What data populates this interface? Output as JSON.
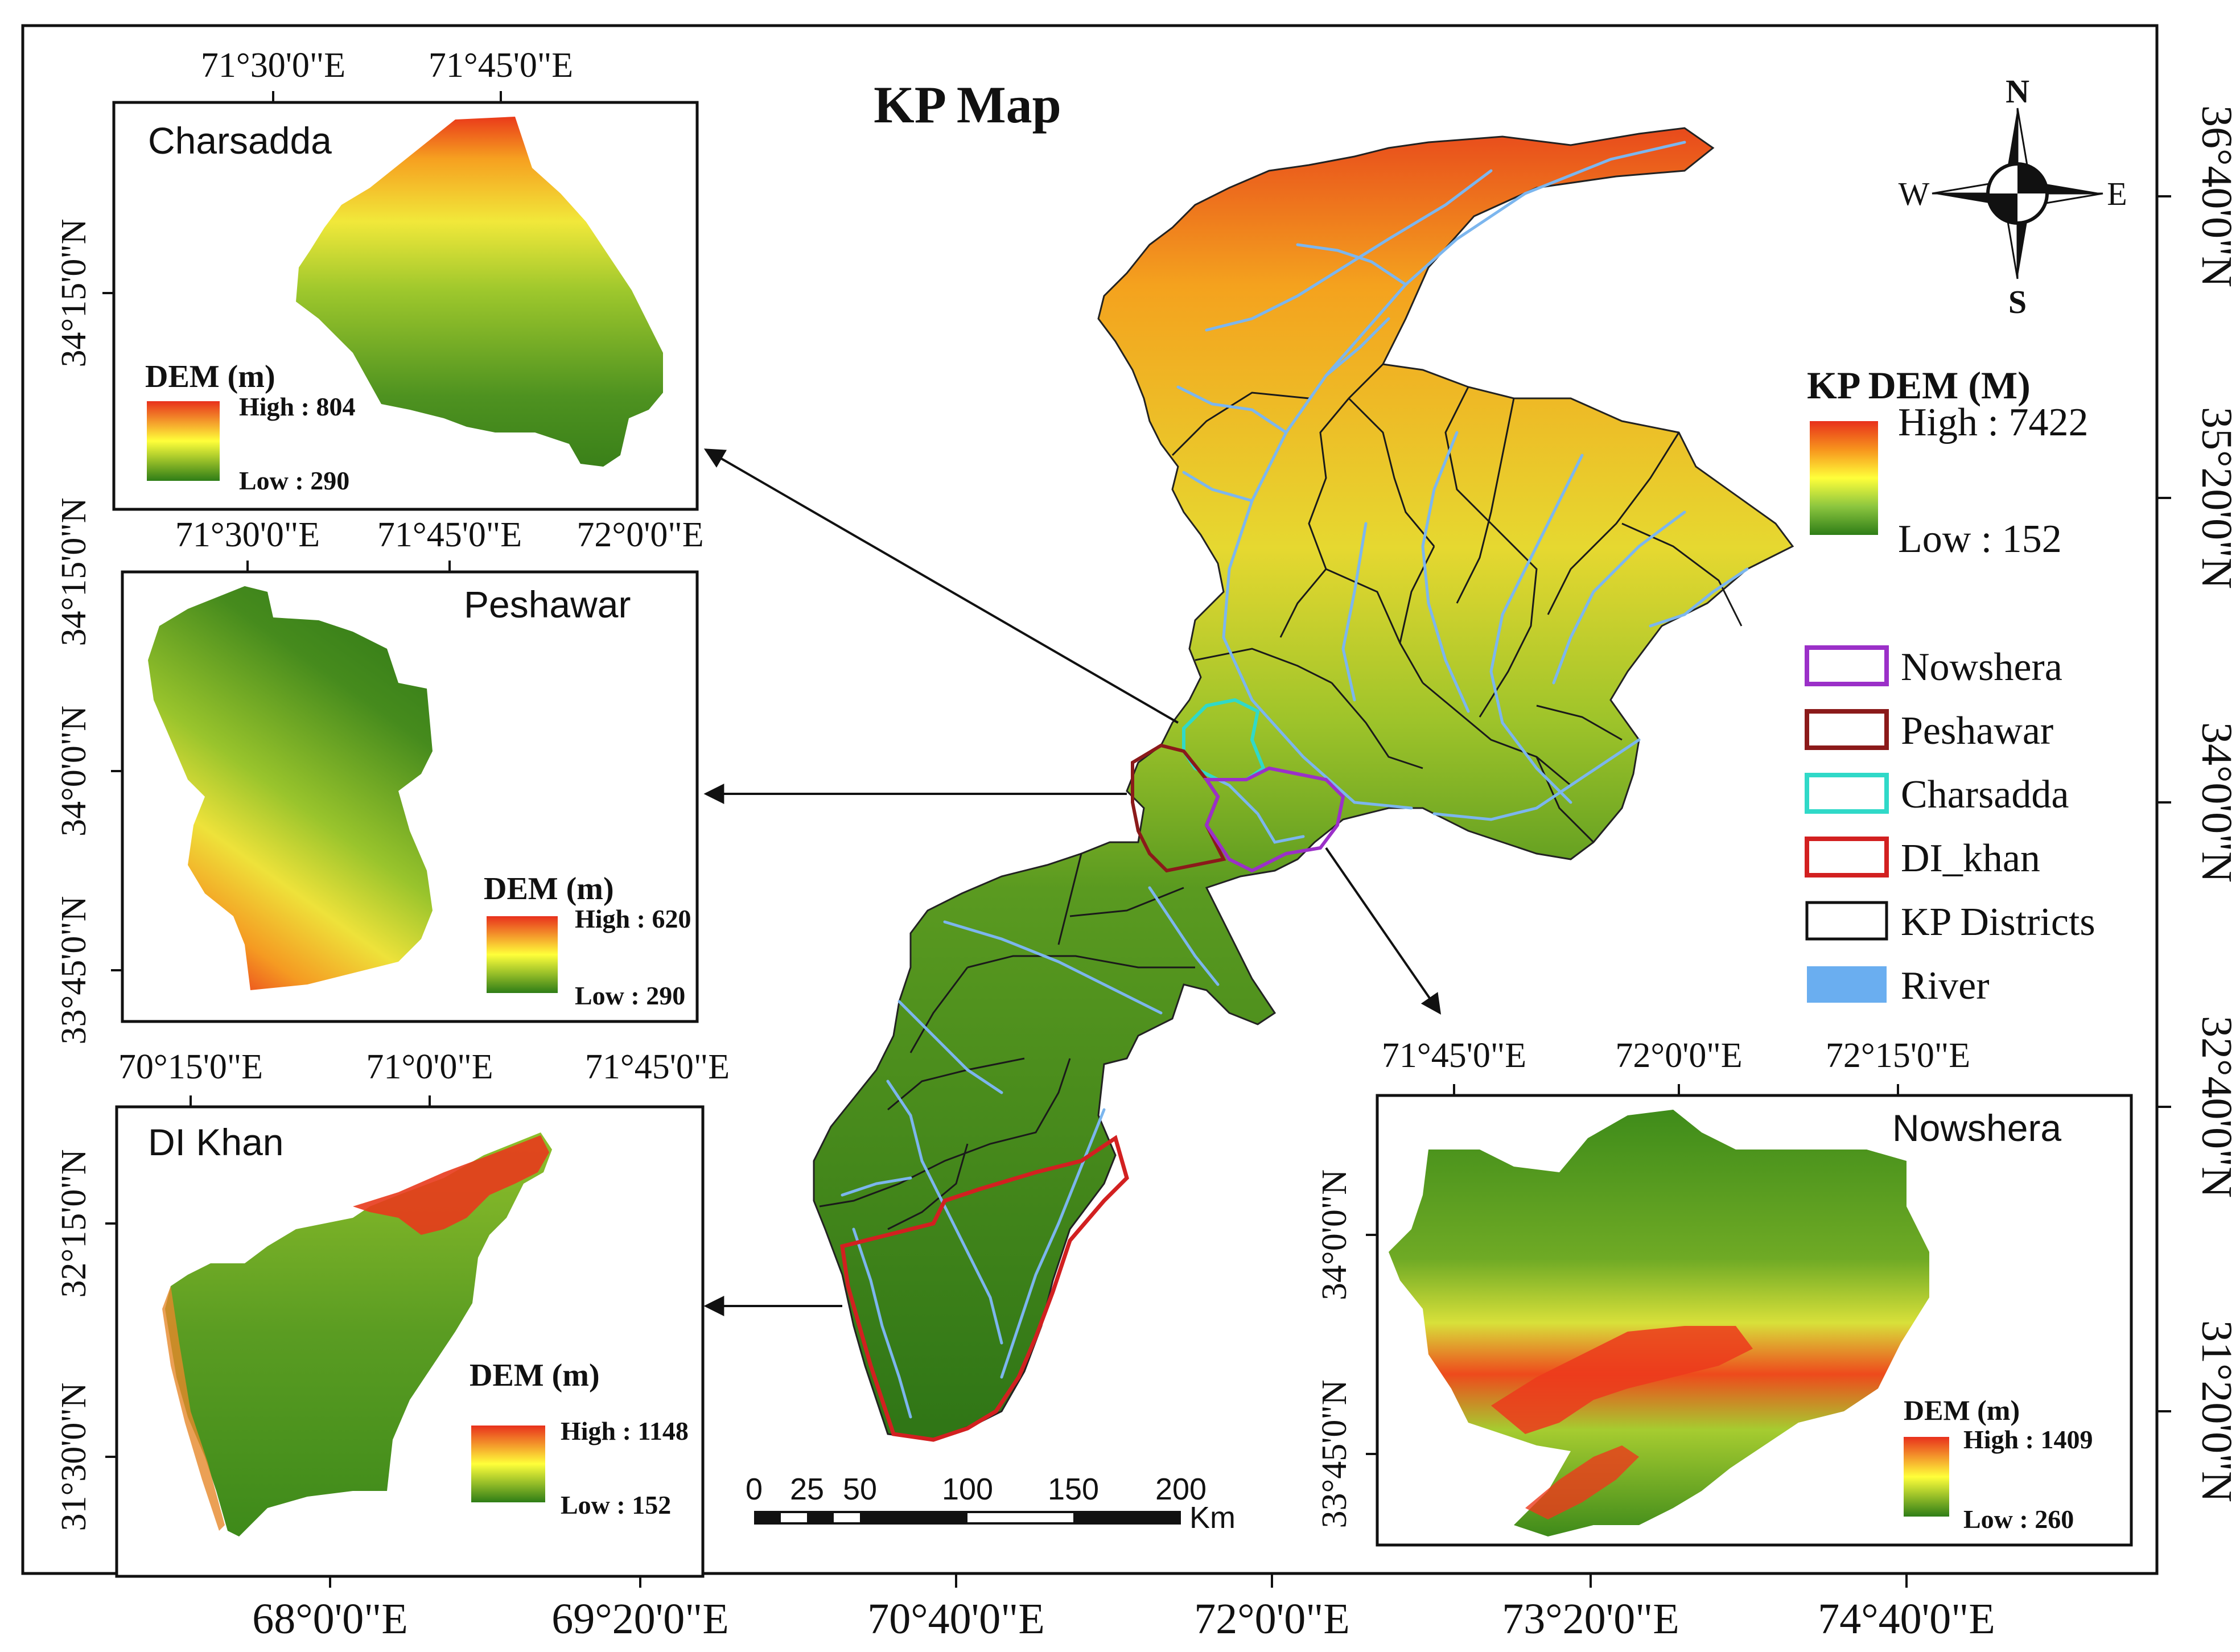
{
  "main_map": {
    "title": "KP Map",
    "bottom_ticks": [
      "68°0'0\"E",
      "69°20'0\"E",
      "70°40'0\"E",
      "72°0'0\"E",
      "73°20'0\"E",
      "74°40'0\"E"
    ],
    "right_ticks": [
      "36°40'0\"N",
      "35°20'0\"N",
      "34°0'0\"N",
      "32°40'0\"N",
      "31°20'0\"N"
    ]
  },
  "north_arrow": {
    "n": "N",
    "s": "S",
    "e": "E",
    "w": "W"
  },
  "dem_legend": {
    "title": "KP DEM (M)",
    "high": "High : 7422",
    "low": "Low : 152",
    "colors": {
      "high": "#e8301c",
      "mid": "#ffff3a",
      "low": "#2e7d17"
    }
  },
  "legend": {
    "items": [
      {
        "label": "Nowshera",
        "color": "#9b30c8",
        "kind": "outline"
      },
      {
        "label": "Peshawar",
        "color": "#8b1a1a",
        "kind": "outline"
      },
      {
        "label": "Charsadda",
        "color": "#30d9c8",
        "kind": "outline"
      },
      {
        "label": "DI_khan",
        "color": "#d22020",
        "kind": "outline"
      },
      {
        "label": "KP Districts",
        "color": "#111111",
        "kind": "outline"
      },
      {
        "label": "River",
        "color": "#6aaef0",
        "kind": "fill"
      }
    ]
  },
  "scale_bar": {
    "labels": [
      "0",
      "25",
      "50",
      "100",
      "150",
      "200"
    ],
    "unit": "Km"
  },
  "insets": {
    "charsadda": {
      "name": "Charsadda",
      "top_ticks": [
        "71°30'0\"E",
        "71°45'0\"E"
      ],
      "left_ticks": [
        "34°15'0\"N"
      ],
      "dem_title": "DEM (m)",
      "high": "High : 804",
      "low": "Low : 290"
    },
    "peshawar": {
      "name": "Peshawar",
      "top_ticks": [
        "71°30'0\"E",
        "71°45'0\"E",
        "72°0'0\"E"
      ],
      "left_ticks": [
        "34°15'0\"N",
        "34°0'0\"N",
        "33°45'0\"N"
      ],
      "dem_title": "DEM (m)",
      "high": "High : 620",
      "low": "Low : 290"
    },
    "dikhan": {
      "name": "DI Khan",
      "top_ticks": [
        "70°15'0\"E",
        "71°0'0\"E",
        "71°45'0\"E"
      ],
      "left_ticks": [
        "32°15'0\"N",
        "31°30'0\"N"
      ],
      "dem_title": "DEM (m)",
      "high": "High : 1148",
      "low": "Low : 152"
    },
    "nowshera": {
      "name": "Nowshera",
      "top_ticks": [
        "71°45'0\"E",
        "72°0'0\"E",
        "72°15'0\"E"
      ],
      "left_ticks": [
        "34°0'0\"N",
        "33°45'0\"N"
      ],
      "dem_title": "DEM (m)",
      "high": "High : 1409",
      "low": "Low : 260"
    }
  }
}
